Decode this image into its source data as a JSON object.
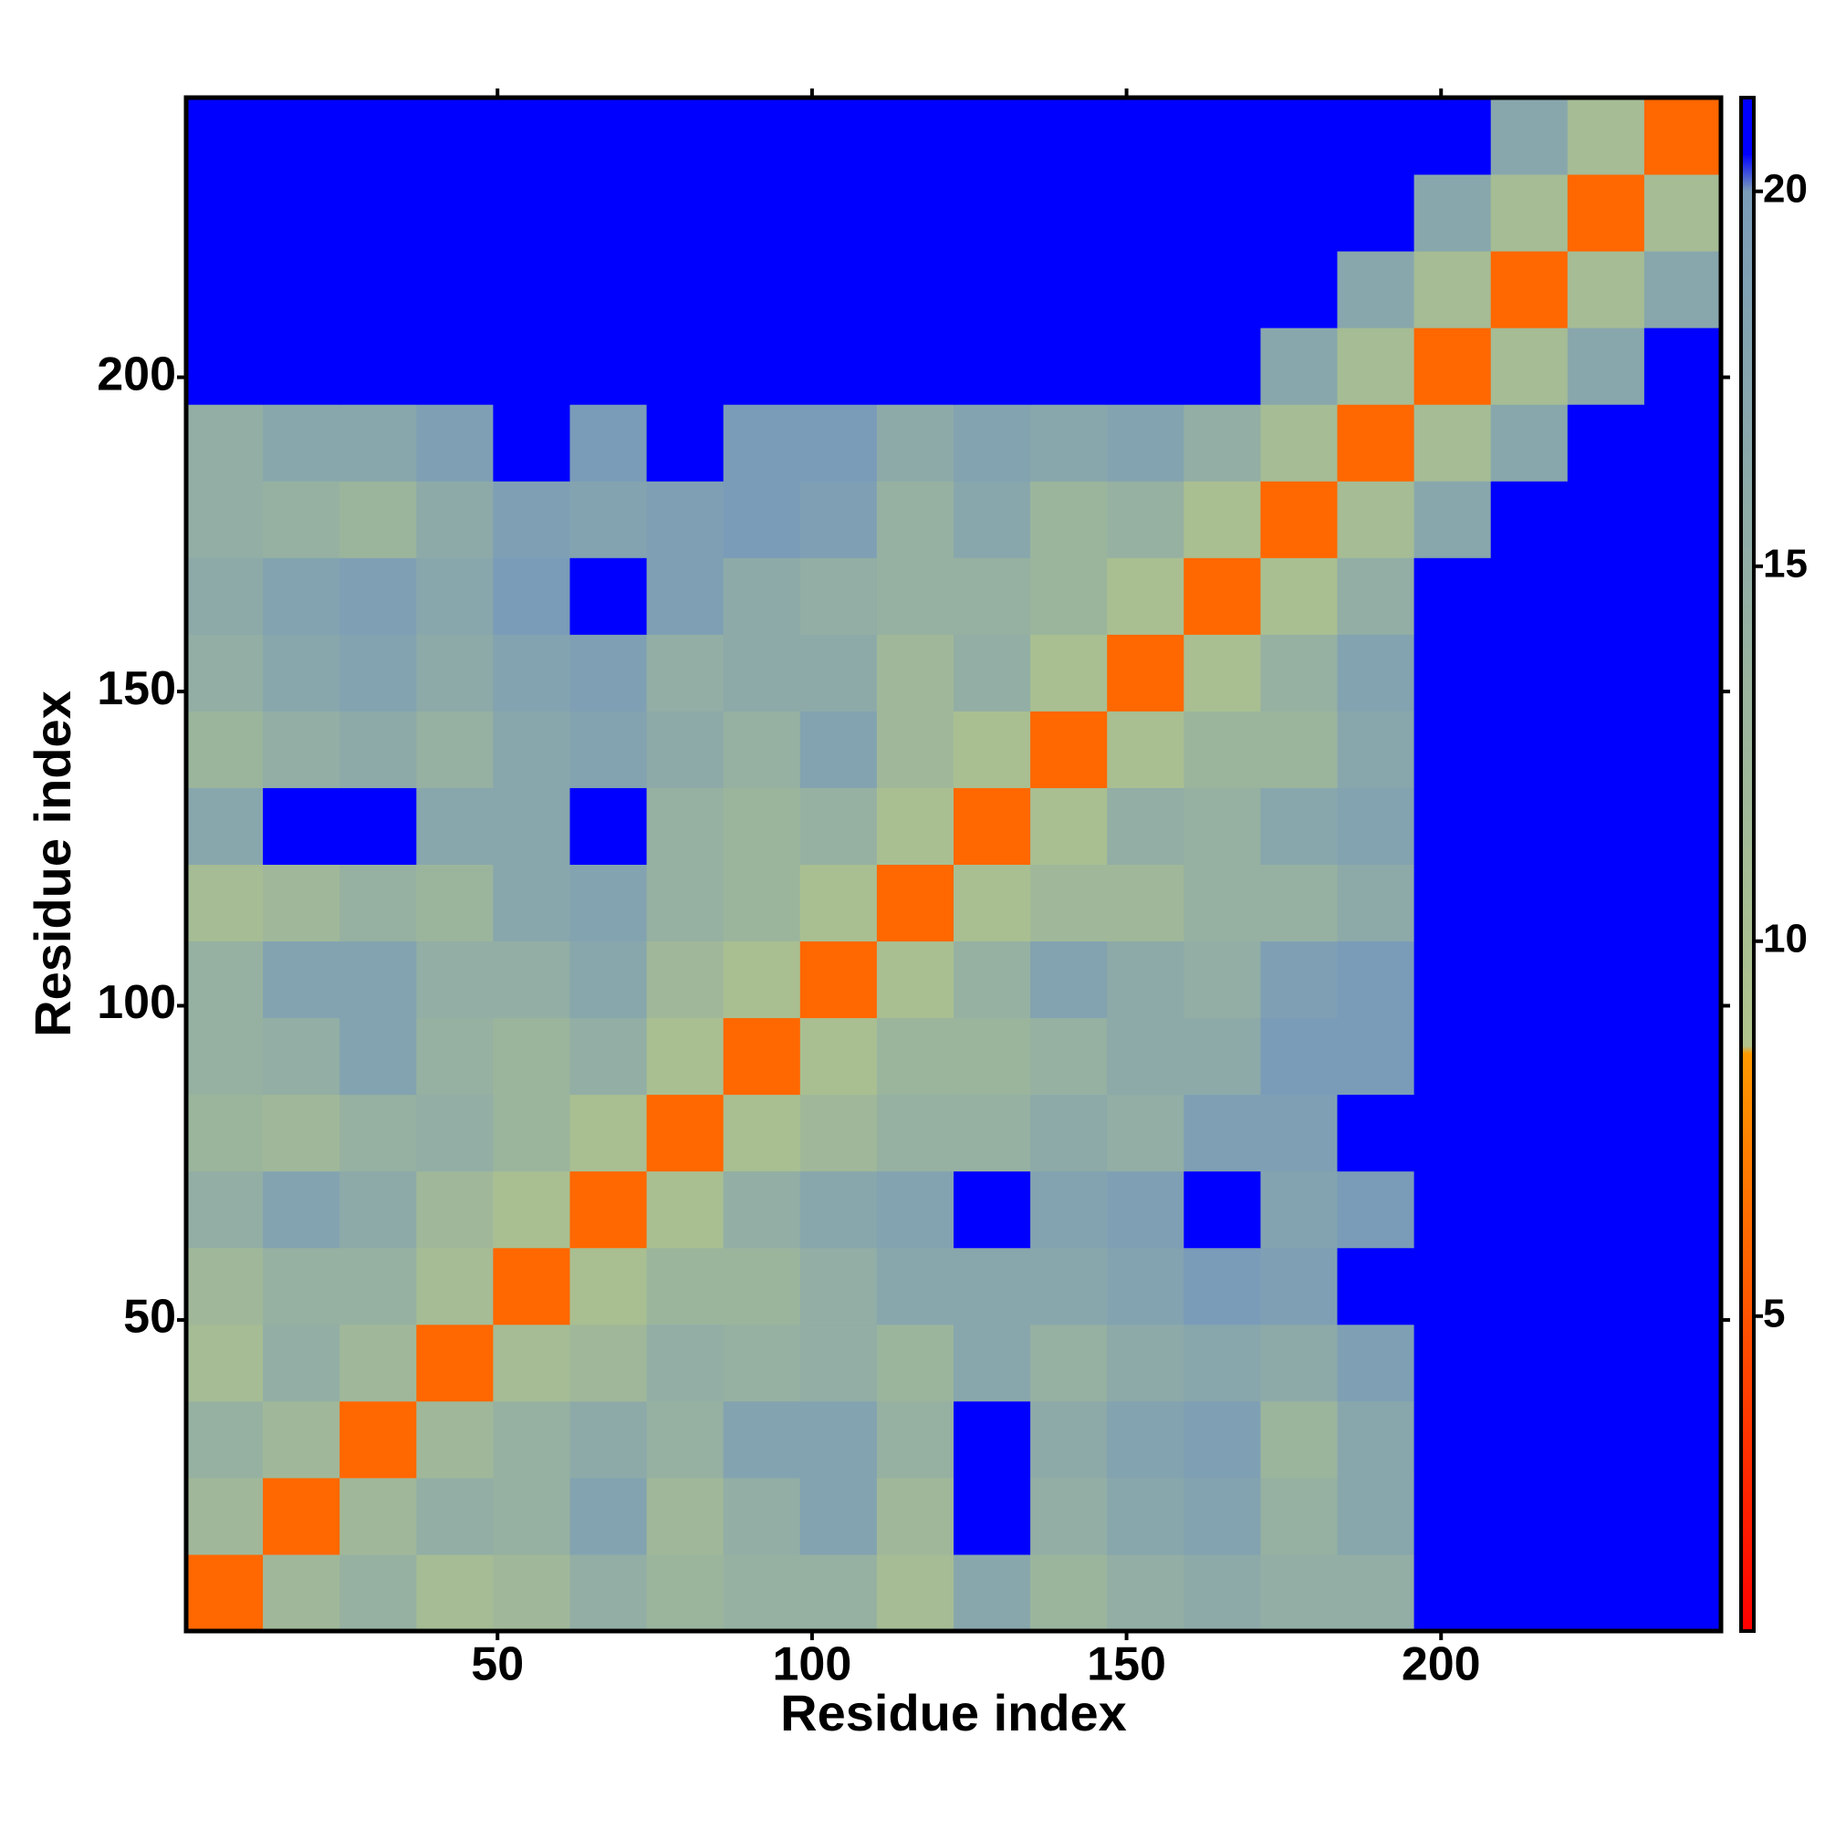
{
  "chart_data": {
    "type": "heatmap",
    "x_label": "Residue index",
    "y_label": "Residue index",
    "bins": [
      0.5,
      12.7,
      24.9,
      37.1,
      49.3,
      61.5,
      73.7,
      85.9,
      98.1,
      110.3,
      122.5,
      134.7,
      146.9,
      159.1,
      171.3,
      183.5,
      195.7,
      207.9,
      220.1,
      232.3,
      244.5
    ],
    "values": [
      [
        6,
        12,
        14,
        11,
        12,
        15,
        13,
        14,
        14,
        11,
        17,
        13,
        15,
        16,
        15,
        15,
        21,
        21,
        21,
        21
      ],
      [
        12,
        6,
        12,
        15,
        14,
        18,
        12,
        15,
        18,
        12,
        21,
        15,
        17,
        18,
        14,
        17,
        21,
        21,
        21,
        21
      ],
      [
        14,
        12,
        6,
        12,
        14,
        16,
        14,
        18,
        18,
        14,
        21,
        16,
        18,
        19,
        13,
        17,
        21,
        21,
        21,
        21
      ],
      [
        11,
        15,
        12,
        6,
        11,
        12,
        15,
        14,
        15,
        13,
        17,
        14,
        16,
        17,
        16,
        19,
        21,
        21,
        21,
        21
      ],
      [
        12,
        14,
        14,
        11,
        6,
        10,
        13,
        13,
        15,
        17,
        17,
        17,
        18,
        20,
        19,
        21,
        21,
        21,
        21,
        21
      ],
      [
        15,
        18,
        16,
        12,
        10,
        6,
        10,
        15,
        17,
        18,
        21,
        18,
        19,
        21,
        18,
        20,
        21,
        21,
        21,
        21
      ],
      [
        13,
        12,
        14,
        15,
        13,
        10,
        6,
        10,
        12,
        14,
        14,
        16,
        15,
        19,
        19,
        21,
        21,
        21,
        21,
        21
      ],
      [
        14,
        15,
        18,
        14,
        13,
        15,
        10,
        6,
        10,
        13,
        13,
        14,
        16,
        16,
        20,
        20,
        21,
        21,
        21,
        21
      ],
      [
        14,
        18,
        18,
        15,
        15,
        17,
        12,
        10,
        6,
        10,
        14,
        18,
        16,
        15,
        19,
        20,
        21,
        21,
        21,
        21
      ],
      [
        11,
        12,
        14,
        13,
        17,
        18,
        14,
        13,
        10,
        6,
        10,
        12,
        12,
        14,
        14,
        16,
        21,
        21,
        21,
        21
      ],
      [
        17,
        21,
        21,
        17,
        17,
        21,
        14,
        13,
        14,
        10,
        6,
        10,
        15,
        14,
        17,
        18,
        21,
        21,
        21,
        21
      ],
      [
        13,
        15,
        16,
        14,
        17,
        18,
        16,
        14,
        18,
        12,
        10,
        6,
        10,
        13,
        13,
        17,
        21,
        21,
        21,
        21
      ],
      [
        15,
        17,
        18,
        16,
        18,
        19,
        15,
        16,
        16,
        12,
        15,
        10,
        6,
        10,
        14,
        18,
        21,
        21,
        21,
        21
      ],
      [
        16,
        18,
        19,
        17,
        20,
        21,
        19,
        16,
        15,
        14,
        14,
        13,
        10,
        6,
        10,
        15,
        21,
        21,
        21,
        21
      ],
      [
        15,
        14,
        13,
        16,
        19,
        18,
        19,
        20,
        19,
        14,
        17,
        13,
        14,
        10,
        6,
        11,
        17,
        21,
        21,
        21
      ],
      [
        15,
        17,
        17,
        19,
        21,
        20,
        21,
        20,
        20,
        16,
        18,
        17,
        18,
        15,
        11,
        6,
        11,
        17,
        21,
        21
      ],
      [
        21,
        21,
        21,
        21,
        21,
        21,
        21,
        21,
        21,
        21,
        21,
        21,
        21,
        21,
        17,
        11,
        6,
        11,
        17,
        21
      ],
      [
        21,
        21,
        21,
        21,
        21,
        21,
        21,
        21,
        21,
        21,
        21,
        21,
        21,
        21,
        21,
        17,
        11,
        6,
        11,
        17
      ],
      [
        21,
        21,
        21,
        21,
        21,
        21,
        21,
        21,
        21,
        21,
        21,
        21,
        21,
        21,
        21,
        21,
        17,
        11,
        6,
        11
      ],
      [
        21,
        21,
        21,
        21,
        21,
        21,
        21,
        21,
        21,
        21,
        21,
        21,
        21,
        21,
        21,
        21,
        21,
        17,
        11,
        6
      ]
    ],
    "xlim": [
      0.5,
      244.5
    ],
    "ylim": [
      0.5,
      244.5
    ],
    "xticks": [
      50,
      100,
      150,
      200
    ],
    "yticks": [
      50,
      100,
      150,
      200
    ],
    "colorbar": {
      "lim": [
        0.8,
        21.25
      ],
      "ticks": [
        5,
        10,
        15,
        20
      ],
      "stops": [
        [
          0.8,
          "#ff0000"
        ],
        [
          8.5,
          "#ff9900"
        ],
        [
          8.6,
          "#b0c48c"
        ],
        [
          20,
          "#7a9cb8"
        ],
        [
          20.5,
          "#0000ff"
        ],
        [
          21.25,
          "#0000ff"
        ]
      ]
    }
  }
}
